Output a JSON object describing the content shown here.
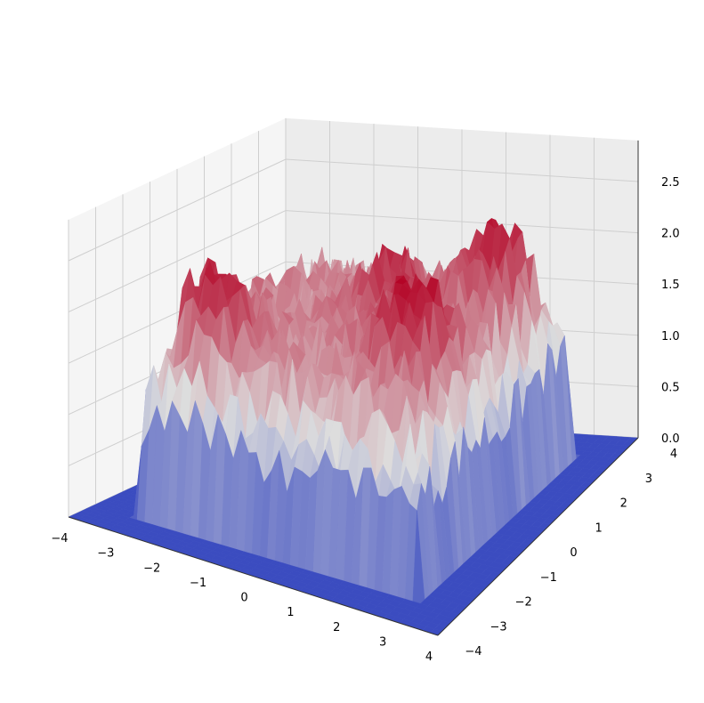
{
  "chart_data": {
    "type": "surface",
    "colormap": "coolwarm",
    "colors": {
      "low": "#3b4cc0",
      "mid": "#dddddd",
      "high": "#b40426",
      "pane": "#f2f2f2",
      "grid": "#cfcfcf"
    },
    "x_range": [
      -4,
      4
    ],
    "y_range": [
      -4,
      4
    ],
    "z_range": [
      0,
      2.6
    ],
    "x_ticks": [
      "−4",
      "−3",
      "−2",
      "−1",
      "0",
      "1",
      "2",
      "3",
      "4"
    ],
    "y_ticks": [
      "−4",
      "−3",
      "−2",
      "−1",
      "0",
      "1",
      "2",
      "3",
      "4"
    ],
    "z_ticks": [
      "0.0",
      "0.5",
      "1.0",
      "1.5",
      "2.0",
      "2.5"
    ],
    "surface": {
      "plateau_extent": [
        [
          -3,
          3
        ],
        [
          -3,
          3
        ]
      ],
      "base_level": 0.0,
      "mean_level": 1.7,
      "max_level": 2.5,
      "peaks": [
        {
          "x": -2.0,
          "y": -2.0,
          "z": 2.4
        },
        {
          "x": 1.8,
          "y": -1.0,
          "z": 2.5
        },
        {
          "x": 2.0,
          "y": 2.0,
          "z": 2.3
        },
        {
          "x": 0.5,
          "y": 0.5,
          "z": 2.3
        }
      ]
    },
    "grid": true
  }
}
